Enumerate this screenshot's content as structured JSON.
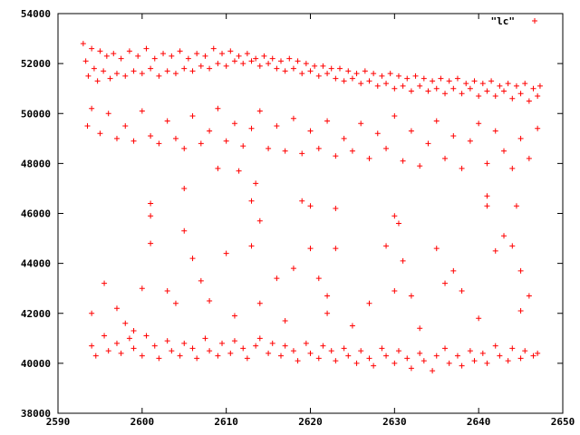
{
  "chart_data": {
    "type": "scatter",
    "title": "",
    "xlabel": "",
    "ylabel": "",
    "xlim": [
      2590,
      2650
    ],
    "ylim": [
      38000,
      54000
    ],
    "x_ticks": [
      2590,
      2600,
      2610,
      2620,
      2630,
      2640,
      2650
    ],
    "y_ticks": [
      38000,
      40000,
      42000,
      44000,
      46000,
      48000,
      50000,
      52000,
      54000
    ],
    "grid": false,
    "legend_position": "top-right",
    "marker": "plus",
    "color": "#ff0000",
    "series": [
      {
        "name": "\"lc\"",
        "points": [
          [
            2593.0,
            52800
          ],
          [
            2593.3,
            52100
          ],
          [
            2593.6,
            51500
          ],
          [
            2594.0,
            52600
          ],
          [
            2594.3,
            51800
          ],
          [
            2594.7,
            51300
          ],
          [
            2595.0,
            52500
          ],
          [
            2595.4,
            51700
          ],
          [
            2595.8,
            52300
          ],
          [
            2596.2,
            51400
          ],
          [
            2596.6,
            52400
          ],
          [
            2597.0,
            51600
          ],
          [
            2597.5,
            52200
          ],
          [
            2598.0,
            51500
          ],
          [
            2598.5,
            52500
          ],
          [
            2599.0,
            51700
          ],
          [
            2599.5,
            52300
          ],
          [
            2600.0,
            51600
          ],
          [
            2600.5,
            52600
          ],
          [
            2601.0,
            51800
          ],
          [
            2601.5,
            52200
          ],
          [
            2602.0,
            51500
          ],
          [
            2602.5,
            52400
          ],
          [
            2603.0,
            51700
          ],
          [
            2603.5,
            52300
          ],
          [
            2604.0,
            51600
          ],
          [
            2604.5,
            52500
          ],
          [
            2605.0,
            51800
          ],
          [
            2605.5,
            52200
          ],
          [
            2606.0,
            51700
          ],
          [
            2606.5,
            52400
          ],
          [
            2607.0,
            51900
          ],
          [
            2607.5,
            52300
          ],
          [
            2608.0,
            51800
          ],
          [
            2608.5,
            52600
          ],
          [
            2609.0,
            52000
          ],
          [
            2609.5,
            52400
          ],
          [
            2610.0,
            51900
          ],
          [
            2610.5,
            52500
          ],
          [
            2611.0,
            52100
          ],
          [
            2611.5,
            52300
          ],
          [
            2612.0,
            52000
          ],
          [
            2612.5,
            52400
          ],
          [
            2613.0,
            52100
          ],
          [
            2613.5,
            52200
          ],
          [
            2614.0,
            51900
          ],
          [
            2614.5,
            52300
          ],
          [
            2615.0,
            52000
          ],
          [
            2615.5,
            52200
          ],
          [
            2616.0,
            51800
          ],
          [
            2616.5,
            52100
          ],
          [
            2617.0,
            51700
          ],
          [
            2617.5,
            52200
          ],
          [
            2618.0,
            51800
          ],
          [
            2618.5,
            52100
          ],
          [
            2619.0,
            51600
          ],
          [
            2619.5,
            52000
          ],
          [
            2620.0,
            51700
          ],
          [
            2620.5,
            51900
          ],
          [
            2621.0,
            51500
          ],
          [
            2621.5,
            51900
          ],
          [
            2622.0,
            51600
          ],
          [
            2622.5,
            51800
          ],
          [
            2623.0,
            51400
          ],
          [
            2623.5,
            51800
          ],
          [
            2624.0,
            51300
          ],
          [
            2624.5,
            51700
          ],
          [
            2625.0,
            51400
          ],
          [
            2625.5,
            51600
          ],
          [
            2626.0,
            51200
          ],
          [
            2626.5,
            51700
          ],
          [
            2627.0,
            51300
          ],
          [
            2627.5,
            51600
          ],
          [
            2628.0,
            51100
          ],
          [
            2628.5,
            51500
          ],
          [
            2629.0,
            51200
          ],
          [
            2629.5,
            51600
          ],
          [
            2630.0,
            51000
          ],
          [
            2630.5,
            51500
          ],
          [
            2631.0,
            51100
          ],
          [
            2631.5,
            51400
          ],
          [
            2632.0,
            50900
          ],
          [
            2632.5,
            51500
          ],
          [
            2633.0,
            51100
          ],
          [
            2633.5,
            51400
          ],
          [
            2634.0,
            50900
          ],
          [
            2634.5,
            51300
          ],
          [
            2635.0,
            51000
          ],
          [
            2635.5,
            51400
          ],
          [
            2636.0,
            50800
          ],
          [
            2636.5,
            51300
          ],
          [
            2637.0,
            51000
          ],
          [
            2637.5,
            51400
          ],
          [
            2638.0,
            50800
          ],
          [
            2638.5,
            51200
          ],
          [
            2639.0,
            51000
          ],
          [
            2639.5,
            51300
          ],
          [
            2640.0,
            50700
          ],
          [
            2640.5,
            51200
          ],
          [
            2641.0,
            50900
          ],
          [
            2641.5,
            51300
          ],
          [
            2642.0,
            50700
          ],
          [
            2642.5,
            51100
          ],
          [
            2643.0,
            50900
          ],
          [
            2643.5,
            51200
          ],
          [
            2644.0,
            50600
          ],
          [
            2644.5,
            51100
          ],
          [
            2645.0,
            50800
          ],
          [
            2645.5,
            51200
          ],
          [
            2646.0,
            50500
          ],
          [
            2646.5,
            51000
          ],
          [
            2647.0,
            50700
          ],
          [
            2647.3,
            51100
          ],
          [
            2593.5,
            49500
          ],
          [
            2594.0,
            50200
          ],
          [
            2595.0,
            49200
          ],
          [
            2596.0,
            50000
          ],
          [
            2597.0,
            49000
          ],
          [
            2598.0,
            49500
          ],
          [
            2599.0,
            48900
          ],
          [
            2600.0,
            50100
          ],
          [
            2601.0,
            49100
          ],
          [
            2602.0,
            48800
          ],
          [
            2603.0,
            49700
          ],
          [
            2604.0,
            49000
          ],
          [
            2605.0,
            48600
          ],
          [
            2606.0,
            49900
          ],
          [
            2607.0,
            48800
          ],
          [
            2608.0,
            49300
          ],
          [
            2609.0,
            50200
          ],
          [
            2610.0,
            48900
          ],
          [
            2611.0,
            49600
          ],
          [
            2612.0,
            48700
          ],
          [
            2613.0,
            49400
          ],
          [
            2614.0,
            50100
          ],
          [
            2615.0,
            48600
          ],
          [
            2616.0,
            49500
          ],
          [
            2617.0,
            48500
          ],
          [
            2618.0,
            49800
          ],
          [
            2619.0,
            48400
          ],
          [
            2620.0,
            49300
          ],
          [
            2621.0,
            48600
          ],
          [
            2622.0,
            49700
          ],
          [
            2623.0,
            48300
          ],
          [
            2624.0,
            49000
          ],
          [
            2625.0,
            48500
          ],
          [
            2626.0,
            49600
          ],
          [
            2627.0,
            48200
          ],
          [
            2628.0,
            49200
          ],
          [
            2629.0,
            48600
          ],
          [
            2630.0,
            49900
          ],
          [
            2631.0,
            48100
          ],
          [
            2632.0,
            49300
          ],
          [
            2633.0,
            47900
          ],
          [
            2634.0,
            48800
          ],
          [
            2635.0,
            49700
          ],
          [
            2636.0,
            48200
          ],
          [
            2637.0,
            49100
          ],
          [
            2638.0,
            47800
          ],
          [
            2639.0,
            48900
          ],
          [
            2640.0,
            49600
          ],
          [
            2641.0,
            48000
          ],
          [
            2642.0,
            49300
          ],
          [
            2643.0,
            48500
          ],
          [
            2644.0,
            47800
          ],
          [
            2645.0,
            49000
          ],
          [
            2646.0,
            48200
          ],
          [
            2647.0,
            49400
          ],
          [
            2609.0,
            47800
          ],
          [
            2611.5,
            47700
          ],
          [
            2601.0,
            46400
          ],
          [
            2601.0,
            45900
          ],
          [
            2601.0,
            44800
          ],
          [
            2605.0,
            47000
          ],
          [
            2605.0,
            45300
          ],
          [
            2606.0,
            44200
          ],
          [
            2607.0,
            43300
          ],
          [
            2608.0,
            42500
          ],
          [
            2610.0,
            44400
          ],
          [
            2613.0,
            46500
          ],
          [
            2613.5,
            47200
          ],
          [
            2614.0,
            45700
          ],
          [
            2613.0,
            44700
          ],
          [
            2616.0,
            43400
          ],
          [
            2614.0,
            42400
          ],
          [
            2618.0,
            43800
          ],
          [
            2619.0,
            46500
          ],
          [
            2620.0,
            46300
          ],
          [
            2620.0,
            44600
          ],
          [
            2621.0,
            43400
          ],
          [
            2622.0,
            42700
          ],
          [
            2623.0,
            46200
          ],
          [
            2623.0,
            44600
          ],
          [
            2622.0,
            42000
          ],
          [
            2627.0,
            42400
          ],
          [
            2629.0,
            44700
          ],
          [
            2630.0,
            45900
          ],
          [
            2630.5,
            45600
          ],
          [
            2631.0,
            44100
          ],
          [
            2630.0,
            42900
          ],
          [
            2632.0,
            42700
          ],
          [
            2635.0,
            44600
          ],
          [
            2636.0,
            43200
          ],
          [
            2637.0,
            43700
          ],
          [
            2638.0,
            42900
          ],
          [
            2641.0,
            46700
          ],
          [
            2641.0,
            46300
          ],
          [
            2642.0,
            44500
          ],
          [
            2643.0,
            45100
          ],
          [
            2644.0,
            44700
          ],
          [
            2644.5,
            46300
          ],
          [
            2645.0,
            43700
          ],
          [
            2645.0,
            42100
          ],
          [
            2646.0,
            42700
          ],
          [
            2600.0,
            43000
          ],
          [
            2595.5,
            43200
          ],
          [
            2597.0,
            42200
          ],
          [
            2594.0,
            42000
          ],
          [
            2603.0,
            42900
          ],
          [
            2604.0,
            42400
          ],
          [
            2598.0,
            41600
          ],
          [
            2599.0,
            41300
          ],
          [
            2611.0,
            41900
          ],
          [
            2617.0,
            41700
          ],
          [
            2625.0,
            41500
          ],
          [
            2633.0,
            41400
          ],
          [
            2640.0,
            41800
          ],
          [
            2594.0,
            40700
          ],
          [
            2594.5,
            40300
          ],
          [
            2595.5,
            41100
          ],
          [
            2596.0,
            40500
          ],
          [
            2597.0,
            40800
          ],
          [
            2597.5,
            40400
          ],
          [
            2598.5,
            41000
          ],
          [
            2599.0,
            40600
          ],
          [
            2600.0,
            40300
          ],
          [
            2600.5,
            41100
          ],
          [
            2601.5,
            40700
          ],
          [
            2602.0,
            40200
          ],
          [
            2603.0,
            40900
          ],
          [
            2603.5,
            40500
          ],
          [
            2604.5,
            40300
          ],
          [
            2605.0,
            40800
          ],
          [
            2606.0,
            40600
          ],
          [
            2606.5,
            40200
          ],
          [
            2607.5,
            41000
          ],
          [
            2608.0,
            40500
          ],
          [
            2609.0,
            40300
          ],
          [
            2609.5,
            40800
          ],
          [
            2610.5,
            40400
          ],
          [
            2611.0,
            40900
          ],
          [
            2612.0,
            40600
          ],
          [
            2612.5,
            40200
          ],
          [
            2613.5,
            40700
          ],
          [
            2614.0,
            41000
          ],
          [
            2615.0,
            40400
          ],
          [
            2615.5,
            40800
          ],
          [
            2616.5,
            40300
          ],
          [
            2617.0,
            40700
          ],
          [
            2618.0,
            40500
          ],
          [
            2618.5,
            40100
          ],
          [
            2619.5,
            40800
          ],
          [
            2620.0,
            40400
          ],
          [
            2621.0,
            40200
          ],
          [
            2621.5,
            40700
          ],
          [
            2622.5,
            40500
          ],
          [
            2623.0,
            40100
          ],
          [
            2624.0,
            40600
          ],
          [
            2624.5,
            40300
          ],
          [
            2625.5,
            40000
          ],
          [
            2626.0,
            40500
          ],
          [
            2627.0,
            40200
          ],
          [
            2627.5,
            39900
          ],
          [
            2628.5,
            40600
          ],
          [
            2629.0,
            40300
          ],
          [
            2630.0,
            40000
          ],
          [
            2630.5,
            40500
          ],
          [
            2631.5,
            40200
          ],
          [
            2632.0,
            39800
          ],
          [
            2633.0,
            40400
          ],
          [
            2633.5,
            40100
          ],
          [
            2634.5,
            39700
          ],
          [
            2635.0,
            40300
          ],
          [
            2636.0,
            40600
          ],
          [
            2636.5,
            40000
          ],
          [
            2637.5,
            40300
          ],
          [
            2638.0,
            39900
          ],
          [
            2639.0,
            40500
          ],
          [
            2639.5,
            40100
          ],
          [
            2640.5,
            40400
          ],
          [
            2641.0,
            40000
          ],
          [
            2642.0,
            40700
          ],
          [
            2642.5,
            40300
          ],
          [
            2643.5,
            40100
          ],
          [
            2644.0,
            40600
          ],
          [
            2645.0,
            40200
          ],
          [
            2645.5,
            40500
          ],
          [
            2646.5,
            40300
          ],
          [
            2647.0,
            40400
          ]
        ]
      }
    ]
  }
}
